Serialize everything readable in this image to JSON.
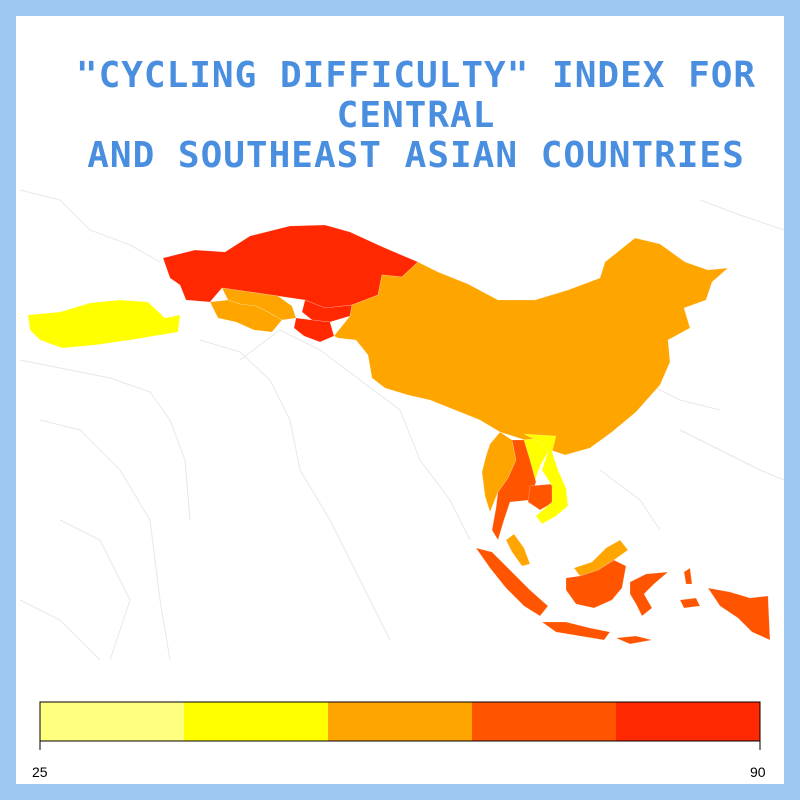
{
  "title": {
    "line1": "\"Cycling Difficulty\" Index for Central",
    "line2": "and Southeast Asian Countries"
  },
  "colors": {
    "frame": "#9ec8f0",
    "title": "#4a8ee0",
    "background_borders": "#ececec",
    "scale": [
      "#ffff80",
      "#ffff00",
      "#ffa500",
      "#ff5500",
      "#ff2800"
    ]
  },
  "legend": {
    "min_label": "25",
    "max_label": "90",
    "range": [
      25,
      90
    ],
    "bins": [
      {
        "from": 25,
        "to": 38,
        "color": "#ffff80"
      },
      {
        "from": 38,
        "to": 51,
        "color": "#ffff00"
      },
      {
        "from": 51,
        "to": 64,
        "color": "#ffa500"
      },
      {
        "from": 64,
        "to": 77,
        "color": "#ff5500"
      },
      {
        "from": 77,
        "to": 90,
        "color": "#ff2800"
      }
    ]
  }
}
